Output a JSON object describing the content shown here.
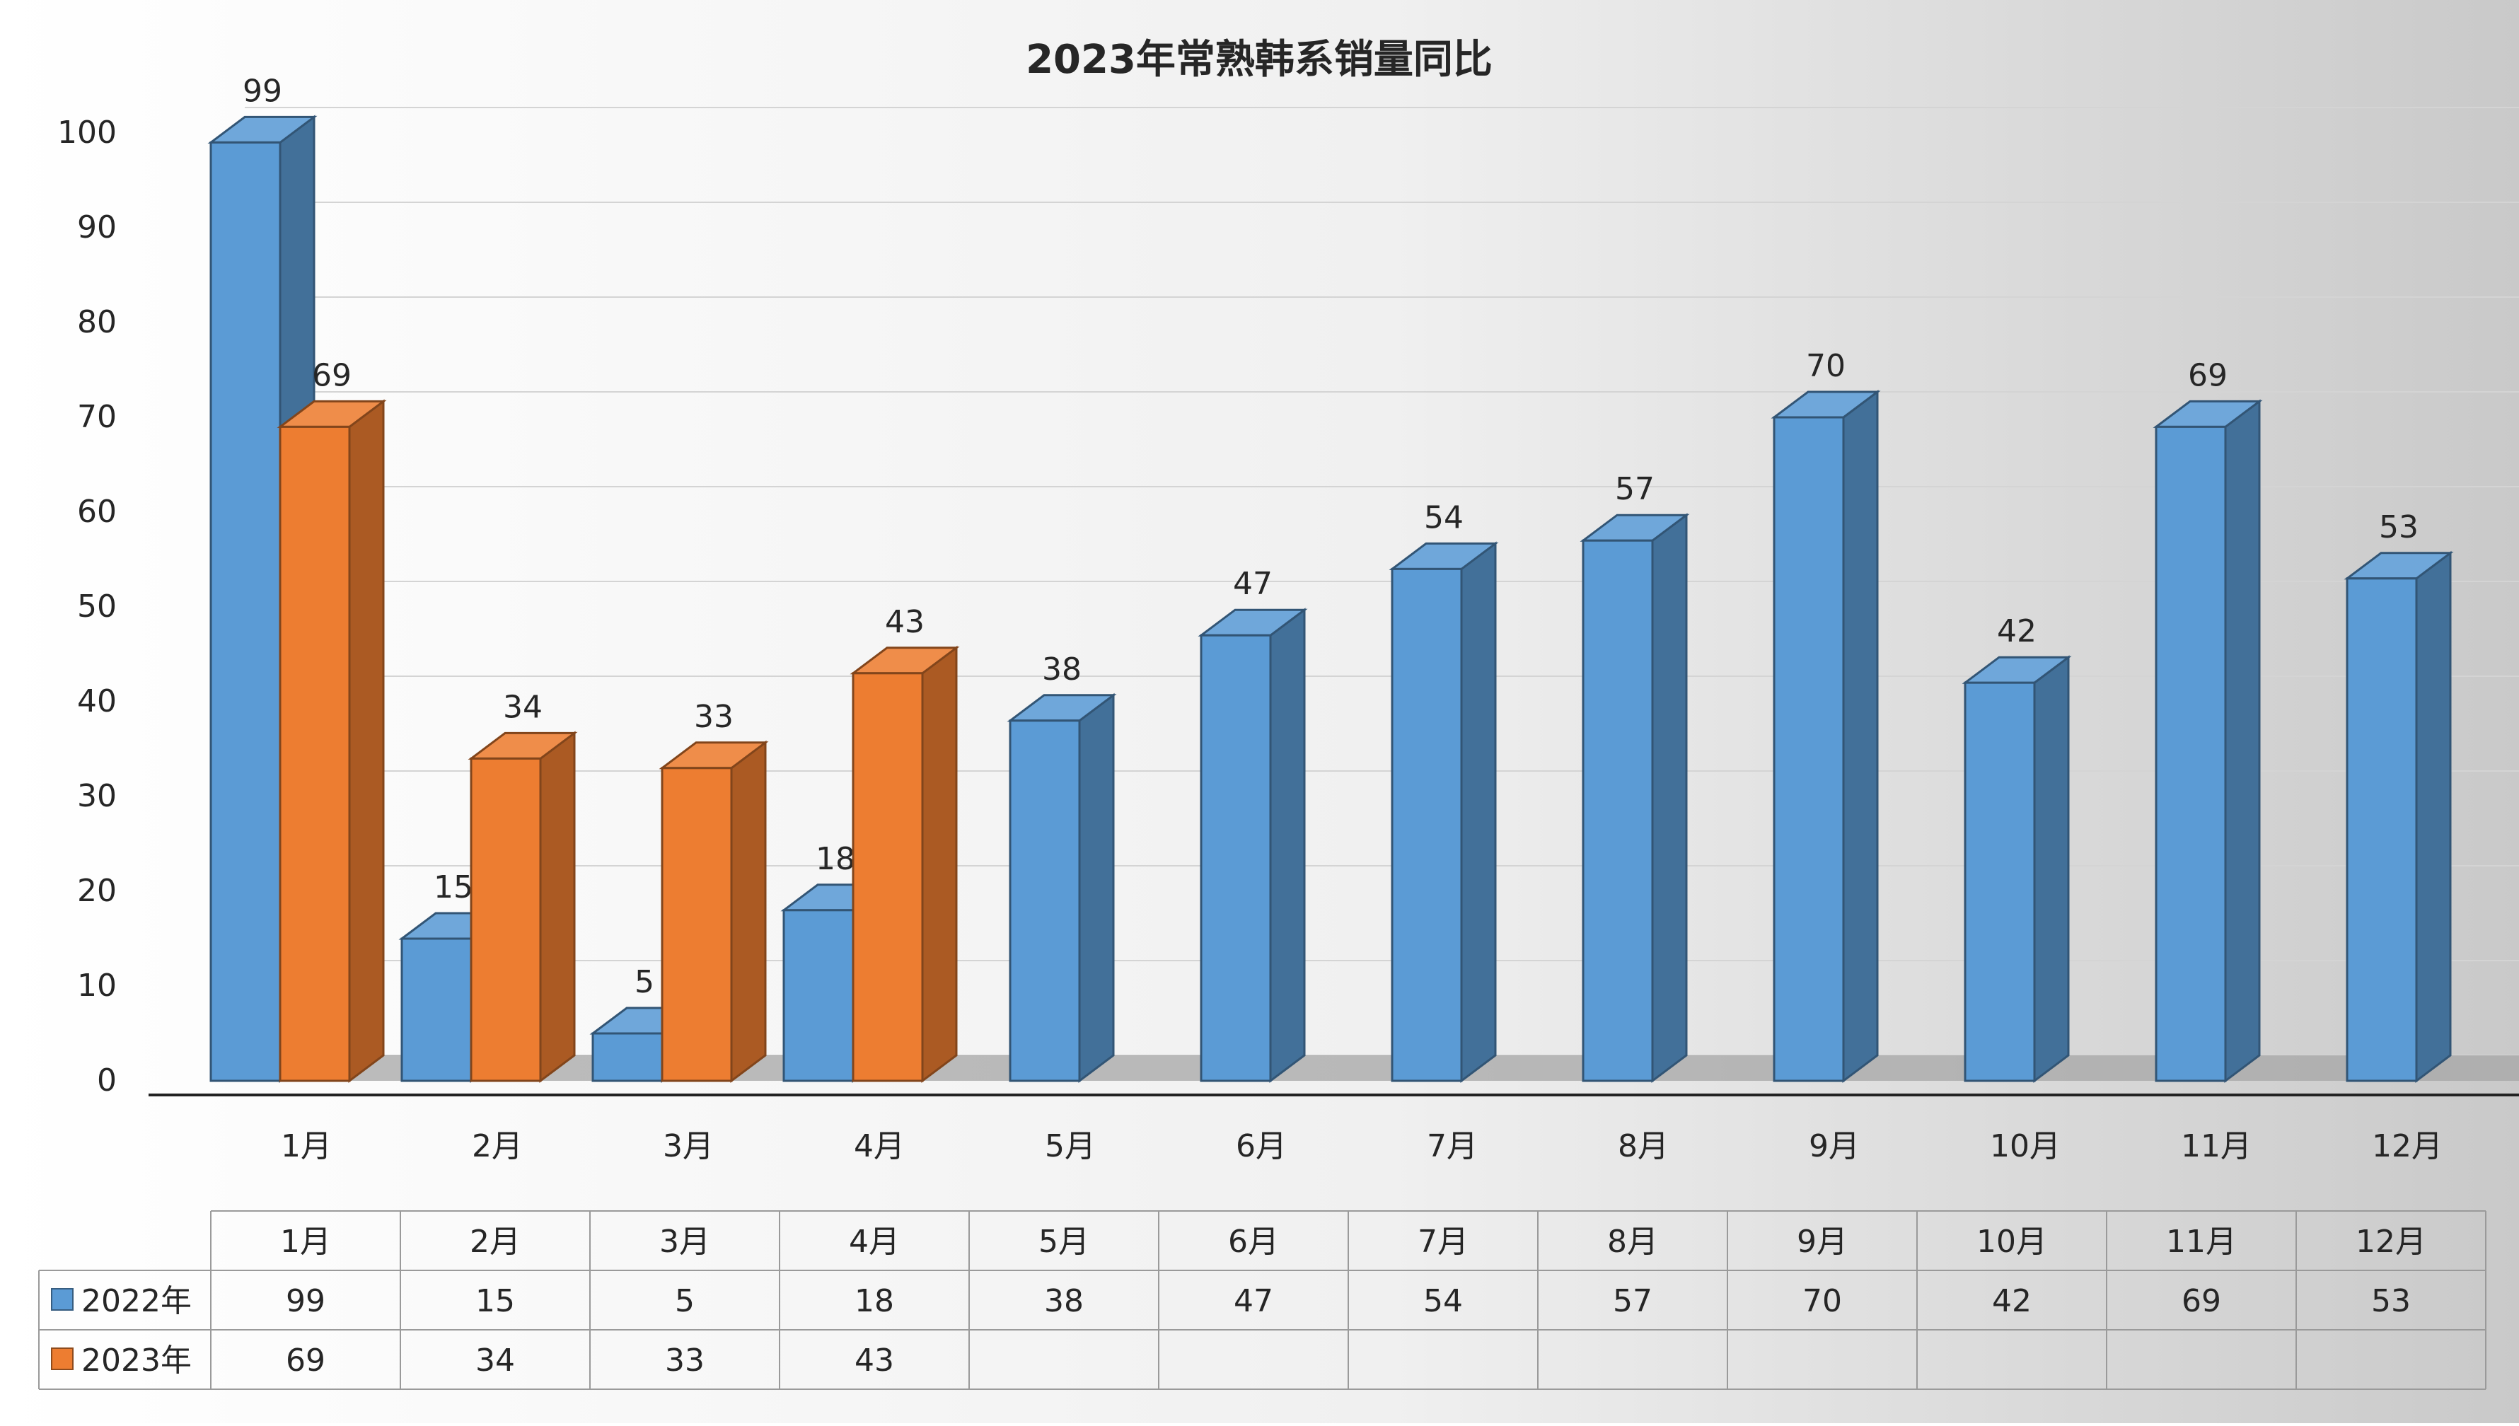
{
  "chart_data": {
    "type": "bar",
    "title": "2023年常熟韩系销量同比",
    "categories": [
      "1月",
      "2月",
      "3月",
      "4月",
      "5月",
      "6月",
      "7月",
      "8月",
      "9月",
      "10月",
      "11月",
      "12月"
    ],
    "series": [
      {
        "name": "2022年",
        "color": "#5B9BD5",
        "values": [
          99,
          15,
          5,
          18,
          38,
          47,
          54,
          57,
          70,
          42,
          69,
          53
        ]
      },
      {
        "name": "2023年",
        "color": "#ED7D31",
        "values": [
          69,
          34,
          33,
          43,
          null,
          null,
          null,
          null,
          null,
          null,
          null,
          null
        ]
      }
    ],
    "ylim": [
      0,
      100
    ],
    "yticks": [
      0,
      10,
      20,
      30,
      40,
      50,
      60,
      70,
      80,
      90,
      100
    ],
    "grid": true,
    "data_table": true,
    "legend": "data-table"
  }
}
